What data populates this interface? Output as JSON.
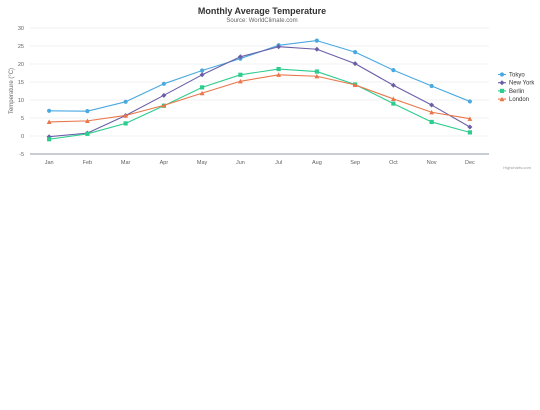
{
  "chart_data": {
    "type": "line",
    "title": "Monthly Average Temperature",
    "subtitle": "Source: WorldClimate.com",
    "xlabel": "",
    "ylabel": "Temperature (°C)",
    "categories": [
      "Jan",
      "Feb",
      "Mar",
      "Apr",
      "May",
      "Jun",
      "Jul",
      "Aug",
      "Sep",
      "Oct",
      "Nov",
      "Dec"
    ],
    "ylim": [
      -5,
      30
    ],
    "yticks": [
      -5,
      0,
      5,
      10,
      15,
      20,
      25,
      30
    ],
    "grid": true,
    "legend_position": "right",
    "credits": "Highcharts.com",
    "series": [
      {
        "name": "Tokyo",
        "color": "#49a9e0",
        "marker": "circle",
        "values": [
          7.0,
          6.9,
          9.5,
          14.5,
          18.2,
          21.5,
          25.2,
          26.5,
          23.3,
          18.3,
          13.9,
          9.6
        ]
      },
      {
        "name": "New York",
        "color": "#6a5fa7",
        "marker": "diamond",
        "values": [
          -0.2,
          0.8,
          5.7,
          11.3,
          17.0,
          22.0,
          24.8,
          24.1,
          20.1,
          14.1,
          8.6,
          2.5
        ]
      },
      {
        "name": "Berlin",
        "color": "#2ecc8f",
        "marker": "square",
        "values": [
          -0.9,
          0.6,
          3.5,
          8.4,
          13.5,
          17.0,
          18.6,
          17.9,
          14.3,
          9.0,
          3.9,
          1.0
        ]
      },
      {
        "name": "London",
        "color": "#e9764a",
        "marker": "triangle",
        "values": [
          3.9,
          4.2,
          5.7,
          8.5,
          11.9,
          15.2,
          17.0,
          16.6,
          14.2,
          10.3,
          6.6,
          4.8
        ]
      }
    ]
  }
}
